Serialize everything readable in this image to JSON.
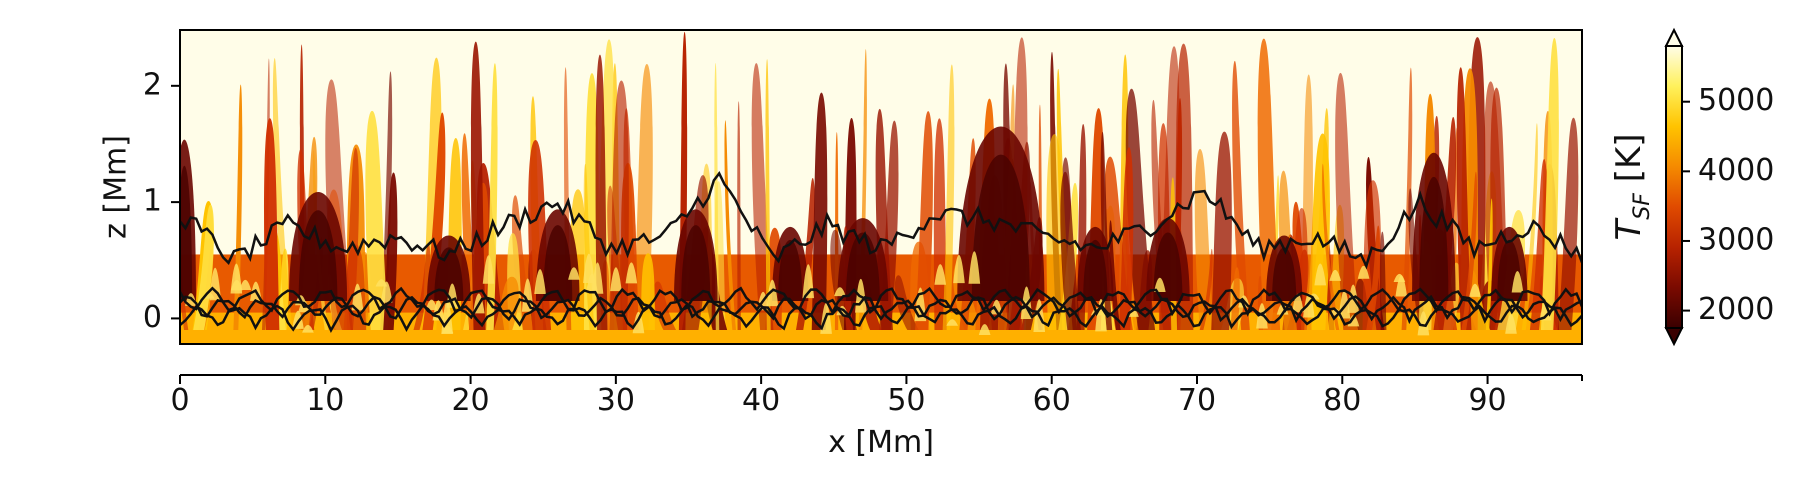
{
  "chart_data": {
    "type": "heatmap",
    "title": "",
    "xlabel": "x [Mm]",
    "ylabel": "z [Mm]",
    "colorbar_label_main": "T",
    "colorbar_label_sub": "SF",
    "colorbar_label_unit": " [K]",
    "xlim": [
      0,
      96.5
    ],
    "ylim": [
      -0.22,
      2.48
    ],
    "x_ticks": [
      0,
      10,
      20,
      30,
      40,
      50,
      60,
      70,
      80,
      90
    ],
    "y_ticks": [
      0,
      1,
      2
    ],
    "colorbar_range": [
      1750,
      5800
    ],
    "colorbar_ticks": [
      2000,
      3000,
      4000,
      5000
    ],
    "colorbar_extend": "both",
    "colormap": [
      "#3a0000",
      "#7a0a00",
      "#b72200",
      "#e04a00",
      "#f58a00",
      "#ffc300",
      "#fff15c",
      "#fffde8"
    ],
    "contour_color": "#111111",
    "note_values": {
      "upper_contour_z_approx": [
        0.9,
        0.5,
        0.8,
        0.6,
        0.7,
        0.55,
        0.8,
        1.0,
        0.6,
        0.7,
        1.2,
        0.5,
        0.8,
        0.6,
        0.9,
        0.85,
        0.7,
        0.6,
        0.8,
        1.1,
        0.6,
        0.7,
        0.5,
        1.0,
        0.6,
        0.8,
        0.55
      ]
    }
  }
}
